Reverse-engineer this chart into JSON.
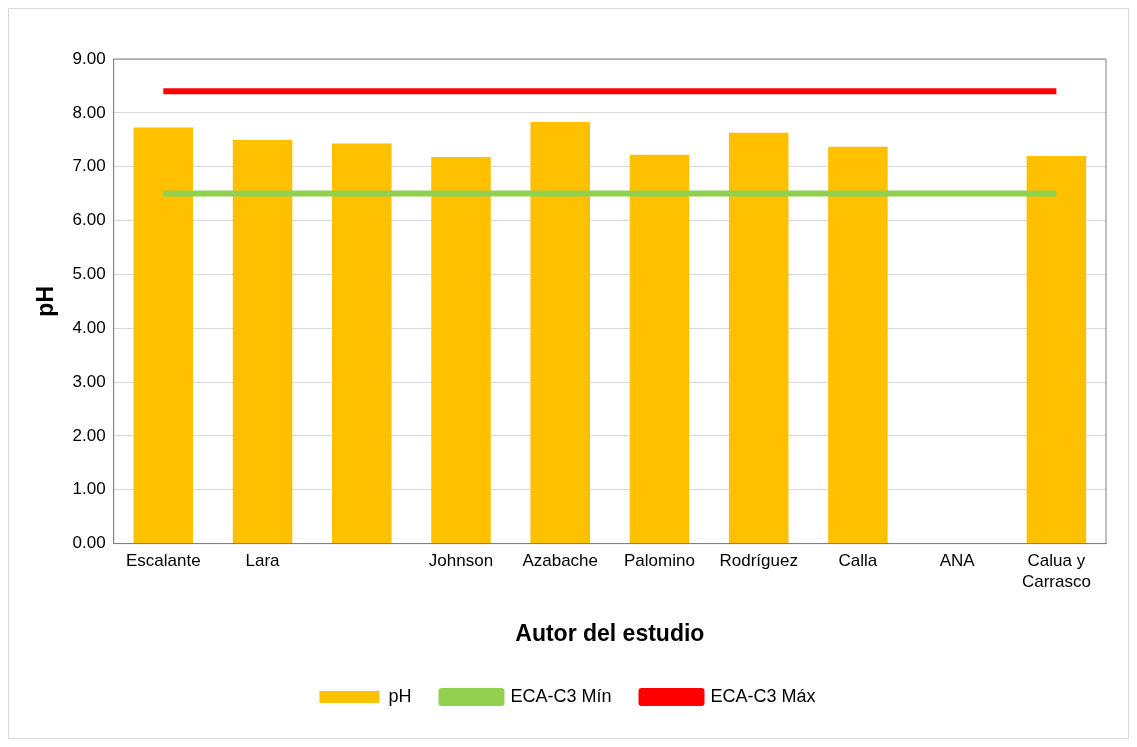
{
  "chart_data": {
    "type": "bar",
    "xlabel": "Autor del estudio",
    "ylabel": "pH",
    "categories": [
      "Escalante",
      "Lara",
      null,
      "Johnson",
      "Azabache",
      "Palomino",
      "Rodríguez",
      "Calla",
      "ANA",
      "Calua y Carrasco"
    ],
    "series": [
      {
        "name": "pH",
        "color": "#ffc000",
        "values": [
          7.73,
          7.5,
          7.43,
          7.18,
          7.83,
          7.22,
          7.63,
          7.37,
          null,
          7.2
        ]
      },
      {
        "name": "ECA-C3 Mín",
        "type": "line",
        "color": "#92d050",
        "values": [
          6.5,
          6.5,
          6.5,
          6.5,
          6.5,
          6.5,
          6.5,
          6.5,
          6.5,
          6.5
        ]
      },
      {
        "name": "ECA-C3 Máx",
        "type": "line",
        "color": "#ff0000",
        "values": [
          8.4,
          8.4,
          8.4,
          8.4,
          8.4,
          8.4,
          8.4,
          8.4,
          8.4,
          8.4
        ]
      }
    ],
    "ylim": [
      0,
      9
    ],
    "yticks": [
      {
        "value": 0,
        "label": "0.00"
      },
      {
        "value": 1,
        "label": "1.00"
      },
      {
        "value": 2,
        "label": "2.00"
      },
      {
        "value": 3,
        "label": "3.00"
      },
      {
        "value": 4,
        "label": "4.00"
      },
      {
        "value": 5,
        "label": "5.00"
      },
      {
        "value": 6,
        "label": "6.00"
      },
      {
        "value": 7,
        "label": "7.00"
      },
      {
        "value": 8,
        "label": "8.00"
      },
      {
        "value": 9,
        "label": "9.00"
      }
    ],
    "grid": "y",
    "legend": "bottom",
    "marker": "none"
  }
}
